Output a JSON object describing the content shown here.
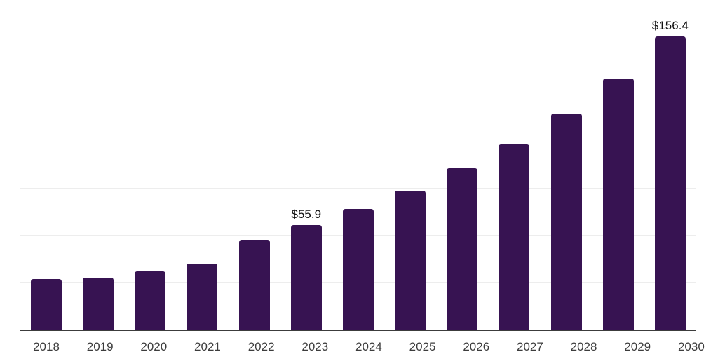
{
  "chart_data": {
    "type": "bar",
    "title": "",
    "xlabel": "",
    "ylabel": "",
    "categories": [
      "2018",
      "2019",
      "2020",
      "2021",
      "2022",
      "2023",
      "2024",
      "2025",
      "2026",
      "2027",
      "2028",
      "2029",
      "2030"
    ],
    "values": [
      26.8,
      27.5,
      30.9,
      35.0,
      48.0,
      55.9,
      64.5,
      73.9,
      86.0,
      98.8,
      115.0,
      133.7,
      156.4
    ],
    "value_labels": [
      "",
      "",
      "",
      "",
      "",
      "$55.9",
      "",
      "",
      "",
      "",
      "",
      "",
      "$156.4"
    ],
    "ylim": [
      0,
      175
    ],
    "gridline_step": 25,
    "grid": "horizontal",
    "legend": "none",
    "y_axis_tick_labels_visible": false,
    "colors": {
      "bar": "#371352",
      "axis": "#3c3c3c",
      "gridline": "#ededed",
      "tick_label": "#3c3c3c",
      "value_label": "#111111",
      "background": "#ffffff"
    }
  }
}
